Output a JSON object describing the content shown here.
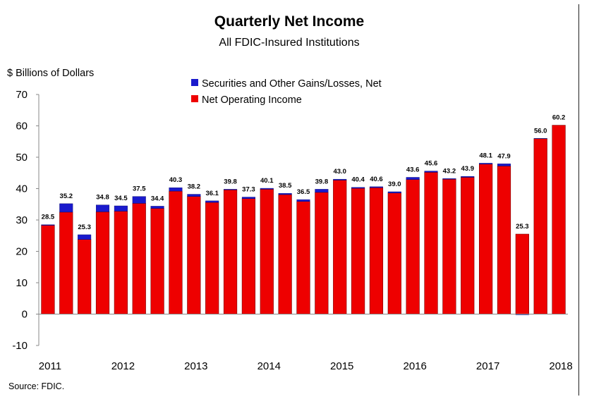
{
  "chart_data": {
    "type": "bar",
    "stacked": true,
    "title": "Quarterly Net Income",
    "subtitle": "All FDIC-Insured Institutions",
    "ylabel": "$ Billions of Dollars",
    "ylim": [
      -10,
      70
    ],
    "yticks": [
      -10,
      0,
      10,
      20,
      30,
      40,
      50,
      60,
      70
    ],
    "grid": false,
    "legend_position": "top-center",
    "year_labels": [
      "2011",
      "2012",
      "2013",
      "2014",
      "2015",
      "2016",
      "2017",
      "2018"
    ],
    "categories": [
      "2011 Q1",
      "2011 Q2",
      "2011 Q3",
      "2011 Q4",
      "2012 Q1",
      "2012 Q2",
      "2012 Q3",
      "2012 Q4",
      "2013 Q1",
      "2013 Q2",
      "2013 Q3",
      "2013 Q4",
      "2014 Q1",
      "2014 Q2",
      "2014 Q3",
      "2014 Q4",
      "2015 Q1",
      "2015 Q2",
      "2015 Q3",
      "2015 Q4",
      "2016 Q1",
      "2016 Q2",
      "2016 Q3",
      "2016 Q4",
      "2017 Q1",
      "2017 Q2",
      "2017 Q3",
      "2017 Q4",
      "2018 Q1"
    ],
    "series": [
      {
        "name": "Net Operating Income",
        "color": "#ee0000",
        "values": [
          28.3,
          32.5,
          23.8,
          32.6,
          32.8,
          35.3,
          33.7,
          39.2,
          37.5,
          35.6,
          39.6,
          36.8,
          39.8,
          38.1,
          35.9,
          38.8,
          42.7,
          40.1,
          40.3,
          38.6,
          42.9,
          45.2,
          43.0,
          43.6,
          47.8,
          47.2,
          25.5,
          55.9,
          60.2
        ]
      },
      {
        "name": "Securities and Other Gains/Losses, Net",
        "color": "#1a1acc",
        "values": [
          0.2,
          2.7,
          1.5,
          2.2,
          1.7,
          2.2,
          0.7,
          1.1,
          0.7,
          0.5,
          0.2,
          0.5,
          0.3,
          0.4,
          0.6,
          1.0,
          0.3,
          0.3,
          0.3,
          0.4,
          0.7,
          0.4,
          0.2,
          0.3,
          0.3,
          0.7,
          -0.2,
          0.1,
          0.0
        ]
      }
    ],
    "totals_labels": [
      "28.5",
      "35.2",
      "25.3",
      "34.8",
      "34.5",
      "37.5",
      "34.4",
      "40.3",
      "38.2",
      "36.1",
      "39.8",
      "37.3",
      "40.1",
      "38.5",
      "36.5",
      "39.8",
      "43.0",
      "40.4",
      "40.6",
      "39.0",
      "43.6",
      "45.6",
      "43.2",
      "43.9",
      "48.1",
      "47.9",
      "25.3",
      "56.0",
      "60.2"
    ]
  },
  "source": "Source:  FDIC."
}
